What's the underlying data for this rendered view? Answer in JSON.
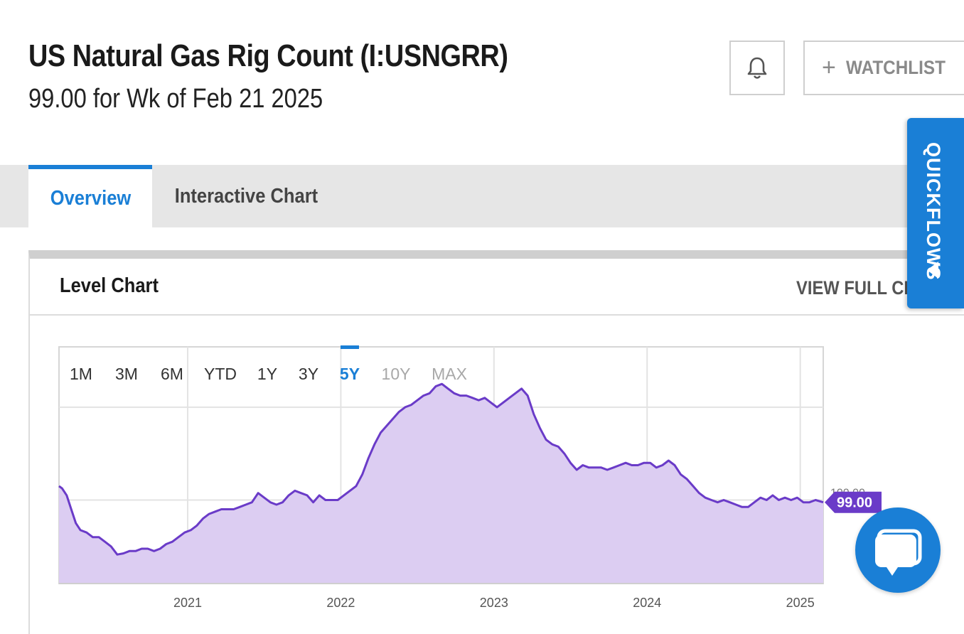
{
  "header": {
    "title": "US Natural Gas Rig Count (I:USNGRR)",
    "subtitle": "99.00 for Wk of Feb 21 2025",
    "watchlist_label": "WATCHLIST",
    "bell_icon": "bell-icon",
    "plus_icon": "plus-icon"
  },
  "tabs": [
    {
      "label": "Overview",
      "active": true
    },
    {
      "label": "Interactive Chart",
      "active": false
    }
  ],
  "card": {
    "title": "Level Chart",
    "view_full_label": "VIEW FULL CH"
  },
  "range_buttons": [
    {
      "label": "1M",
      "state": "enabled"
    },
    {
      "label": "3M",
      "state": "enabled"
    },
    {
      "label": "6M",
      "state": "enabled"
    },
    {
      "label": "YTD",
      "state": "enabled"
    },
    {
      "label": "1Y",
      "state": "enabled"
    },
    {
      "label": "3Y",
      "state": "enabled"
    },
    {
      "label": "5Y",
      "state": "active"
    },
    {
      "label": "10Y",
      "state": "disabled"
    },
    {
      "label": "MAX",
      "state": "disabled"
    }
  ],
  "quickflows_label": "QUICKFLOWS",
  "colors": {
    "accent": "#1a7fd6",
    "series_line": "#6a3bc8",
    "series_fill": "#dccdf2",
    "badge": "#6a3bc8"
  },
  "chart_data": {
    "type": "area",
    "xlim": [
      2020.16,
      2025.15
    ],
    "ylim": [
      64,
      166
    ],
    "x_ticks": [
      {
        "x": 2021,
        "label": "2021"
      },
      {
        "x": 2022,
        "label": "2022"
      },
      {
        "x": 2023,
        "label": "2023"
      },
      {
        "x": 2024,
        "label": "2024"
      },
      {
        "x": 2025,
        "label": "2025"
      }
    ],
    "y_gridlines": [
      100,
      140
    ],
    "y_tick_label": "100.00",
    "last_value_label": "99.00",
    "series": [
      {
        "points": [
          [
            2020.16,
            106
          ],
          [
            2020.18,
            105
          ],
          [
            2020.21,
            102
          ],
          [
            2020.24,
            96
          ],
          [
            2020.27,
            90
          ],
          [
            2020.3,
            87
          ],
          [
            2020.34,
            86
          ],
          [
            2020.38,
            84
          ],
          [
            2020.42,
            84
          ],
          [
            2020.46,
            82
          ],
          [
            2020.5,
            80
          ],
          [
            2020.54,
            76.5
          ],
          [
            2020.58,
            77
          ],
          [
            2020.62,
            78
          ],
          [
            2020.66,
            78
          ],
          [
            2020.7,
            79
          ],
          [
            2020.74,
            79
          ],
          [
            2020.78,
            78
          ],
          [
            2020.82,
            79
          ],
          [
            2020.86,
            81
          ],
          [
            2020.9,
            82
          ],
          [
            2020.94,
            84
          ],
          [
            2020.98,
            86
          ],
          [
            2021.02,
            87
          ],
          [
            2021.06,
            89
          ],
          [
            2021.1,
            92
          ],
          [
            2021.14,
            94
          ],
          [
            2021.18,
            95
          ],
          [
            2021.22,
            96
          ],
          [
            2021.26,
            96
          ],
          [
            2021.3,
            96
          ],
          [
            2021.34,
            97
          ],
          [
            2021.38,
            98
          ],
          [
            2021.42,
            99
          ],
          [
            2021.46,
            103
          ],
          [
            2021.5,
            101
          ],
          [
            2021.54,
            99
          ],
          [
            2021.58,
            98
          ],
          [
            2021.62,
            99
          ],
          [
            2021.66,
            102
          ],
          [
            2021.7,
            104
          ],
          [
            2021.74,
            103
          ],
          [
            2021.78,
            102
          ],
          [
            2021.82,
            99
          ],
          [
            2021.86,
            102
          ],
          [
            2021.9,
            100
          ],
          [
            2021.94,
            100
          ],
          [
            2021.98,
            100
          ],
          [
            2022.02,
            102
          ],
          [
            2022.06,
            104
          ],
          [
            2022.1,
            106
          ],
          [
            2022.14,
            111
          ],
          [
            2022.18,
            118
          ],
          [
            2022.22,
            124
          ],
          [
            2022.26,
            129
          ],
          [
            2022.3,
            132
          ],
          [
            2022.34,
            135
          ],
          [
            2022.38,
            138
          ],
          [
            2022.42,
            140
          ],
          [
            2022.46,
            141
          ],
          [
            2022.5,
            143
          ],
          [
            2022.54,
            145
          ],
          [
            2022.58,
            146
          ],
          [
            2022.62,
            149
          ],
          [
            2022.66,
            150
          ],
          [
            2022.7,
            148
          ],
          [
            2022.74,
            146
          ],
          [
            2022.78,
            145
          ],
          [
            2022.82,
            145
          ],
          [
            2022.86,
            144
          ],
          [
            2022.9,
            143
          ],
          [
            2022.94,
            144
          ],
          [
            2022.98,
            142
          ],
          [
            2023.02,
            140
          ],
          [
            2023.06,
            142
          ],
          [
            2023.1,
            144
          ],
          [
            2023.14,
            146
          ],
          [
            2023.18,
            148
          ],
          [
            2023.22,
            145
          ],
          [
            2023.26,
            137
          ],
          [
            2023.3,
            131
          ],
          [
            2023.34,
            126
          ],
          [
            2023.38,
            124
          ],
          [
            2023.42,
            123
          ],
          [
            2023.46,
            120
          ],
          [
            2023.5,
            116
          ],
          [
            2023.54,
            113
          ],
          [
            2023.58,
            115
          ],
          [
            2023.62,
            114
          ],
          [
            2023.66,
            114
          ],
          [
            2023.7,
            114
          ],
          [
            2023.74,
            113
          ],
          [
            2023.78,
            114
          ],
          [
            2023.82,
            115
          ],
          [
            2023.86,
            116
          ],
          [
            2023.9,
            115
          ],
          [
            2023.94,
            115
          ],
          [
            2023.98,
            116
          ],
          [
            2024.02,
            116
          ],
          [
            2024.06,
            114
          ],
          [
            2024.1,
            115
          ],
          [
            2024.14,
            117
          ],
          [
            2024.18,
            115
          ],
          [
            2024.22,
            111
          ],
          [
            2024.26,
            109
          ],
          [
            2024.3,
            106
          ],
          [
            2024.34,
            103
          ],
          [
            2024.38,
            101
          ],
          [
            2024.42,
            100
          ],
          [
            2024.46,
            99
          ],
          [
            2024.5,
            100
          ],
          [
            2024.54,
            99
          ],
          [
            2024.58,
            98
          ],
          [
            2024.62,
            97
          ],
          [
            2024.66,
            97
          ],
          [
            2024.7,
            99
          ],
          [
            2024.74,
            101
          ],
          [
            2024.78,
            100
          ],
          [
            2024.82,
            102
          ],
          [
            2024.86,
            100
          ],
          [
            2024.9,
            101
          ],
          [
            2024.94,
            100
          ],
          [
            2024.98,
            101
          ],
          [
            2025.02,
            99
          ],
          [
            2025.06,
            99
          ],
          [
            2025.1,
            100
          ],
          [
            2025.15,
            99
          ]
        ]
      }
    ]
  }
}
